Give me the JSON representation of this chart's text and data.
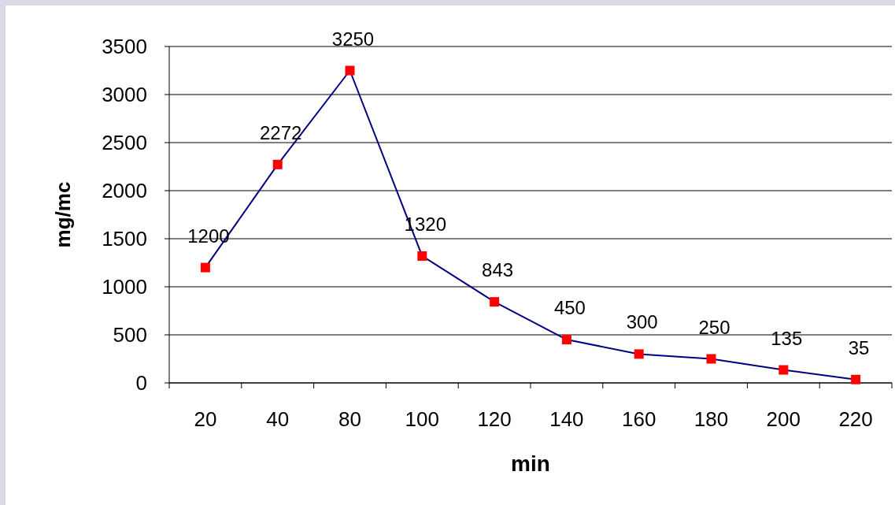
{
  "chart_data": {
    "type": "line",
    "xlabel": "min",
    "ylabel": "mg/mc",
    "categories": [
      "20",
      "40",
      "80",
      "100",
      "120",
      "140",
      "160",
      "180",
      "200",
      "220"
    ],
    "series": [
      {
        "color": "#000080",
        "values": [
          1200,
          2272,
          3250,
          1320,
          843,
          450,
          300,
          250,
          135,
          35
        ]
      }
    ],
    "ylim": [
      0,
      3500
    ],
    "yticks": [
      0,
      500,
      1000,
      1500,
      2000,
      2500,
      3000,
      3500
    ],
    "grid": "y",
    "marker": "square",
    "data_labels": true
  }
}
